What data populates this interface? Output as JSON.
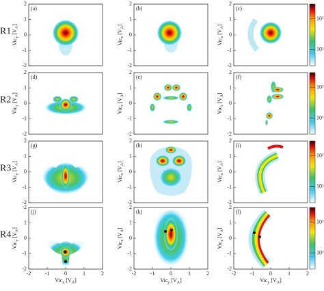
{
  "row_labels": [
    "R1",
    "R2",
    "R3",
    "R4"
  ],
  "chart_data": [
    {
      "type": "heatmap",
      "label": "(a)",
      "xlim": [
        -2,
        2
      ],
      "ylim": [
        -2,
        2
      ],
      "yticks": [
        -2,
        -1,
        0,
        1,
        2
      ],
      "ylabel": {
        "parts": [
          "Vic",
          "y",
          " [V",
          "A",
          "]"
        ]
      }
    },
    {
      "type": "heatmap",
      "label": "(b)",
      "xlim": [
        -2,
        2
      ],
      "ylim": [
        -2,
        2
      ],
      "yticks": [
        -2,
        -1,
        0,
        1,
        2
      ],
      "ylabel": {
        "parts": [
          "Vic",
          "z",
          " [V",
          "A",
          "]"
        ]
      }
    },
    {
      "type": "heatmap",
      "label": "(c)",
      "xlim": [
        -2,
        2
      ],
      "ylim": [
        -2,
        2
      ],
      "yticks": [
        -2,
        -1,
        0,
        1,
        2
      ],
      "ylabel": {
        "parts": [
          "Vic",
          "z",
          " [V",
          "A",
          "]"
        ]
      },
      "colorbar": {
        "clim": [
          3,
          300
        ],
        "ticks": [
          {
            "value": 10,
            "label": "10¹"
          },
          {
            "value": 100,
            "label": "10²"
          }
        ]
      }
    },
    {
      "type": "heatmap",
      "label": "(d)",
      "xlim": [
        -2,
        2
      ],
      "ylim": [
        -2,
        2
      ],
      "yticks": [
        -2,
        -1,
        0,
        1,
        2
      ],
      "ylabel": {
        "parts": [
          "Vic",
          "y",
          " [V",
          "A",
          "]"
        ]
      }
    },
    {
      "type": "heatmap",
      "label": "(e)",
      "xlim": [
        -2,
        2
      ],
      "ylim": [
        -2,
        2
      ],
      "yticks": [
        -2,
        -1,
        0,
        1,
        2
      ],
      "ylabel": {
        "parts": [
          "Vic",
          "z",
          " [V",
          "A",
          "]"
        ]
      }
    },
    {
      "type": "heatmap",
      "label": "(f)",
      "xlim": [
        -2,
        2
      ],
      "ylim": [
        -2,
        2
      ],
      "yticks": [
        -2,
        -1,
        0,
        1,
        2
      ],
      "ylabel": {
        "parts": [
          "Vic",
          "z",
          " [V",
          "A",
          "]"
        ]
      },
      "colorbar": {
        "clim": [
          3,
          300
        ],
        "ticks": [
          {
            "value": 10,
            "label": "10¹"
          },
          {
            "value": 100,
            "label": "10²"
          }
        ]
      }
    },
    {
      "type": "heatmap",
      "label": "(g)",
      "xlim": [
        -2,
        2
      ],
      "ylim": [
        -2,
        2
      ],
      "yticks": [
        -2,
        -1,
        0,
        1,
        2
      ],
      "ylabel": {
        "parts": [
          "Vic",
          "y",
          " [V",
          "A",
          "]"
        ]
      }
    },
    {
      "type": "heatmap",
      "label": "(h)",
      "xlim": [
        -2,
        2
      ],
      "ylim": [
        -2,
        2
      ],
      "yticks": [
        -2,
        -1,
        0,
        1,
        2
      ],
      "ylabel": {
        "parts": [
          "Vic",
          "z",
          " [V",
          "A",
          "]"
        ]
      }
    },
    {
      "type": "heatmap",
      "label": "(i)",
      "xlim": [
        -2,
        2
      ],
      "ylim": [
        -2,
        2
      ],
      "yticks": [
        -2,
        -1,
        0,
        1,
        2
      ],
      "ylabel": {
        "parts": [
          "Vic",
          "z",
          " [V",
          "A",
          "]"
        ]
      },
      "colorbar": {
        "clim": [
          3,
          300
        ],
        "ticks": [
          {
            "value": 10,
            "label": "10¹"
          },
          {
            "value": 100,
            "label": "10²"
          }
        ]
      }
    },
    {
      "type": "heatmap",
      "label": "(j)",
      "xlim": [
        -2,
        2
      ],
      "ylim": [
        -2,
        2
      ],
      "xticks": [
        -2,
        -1,
        0,
        1,
        2
      ],
      "yticks": [
        -2,
        -1,
        0,
        1,
        2
      ],
      "ylabel": {
        "parts": [
          "Vic",
          "y",
          " [V",
          "A",
          "]"
        ]
      },
      "xlabel": {
        "parts": [
          "Vic",
          "x",
          " [V",
          "A",
          "]"
        ]
      }
    },
    {
      "type": "heatmap",
      "label": "(k)",
      "xlim": [
        -2,
        2
      ],
      "ylim": [
        -2,
        2
      ],
      "xticks": [
        -2,
        -1,
        0,
        1,
        2
      ],
      "yticks": [
        -2,
        -1,
        0,
        1,
        2
      ],
      "ylabel": {
        "parts": [
          "Vic",
          "z",
          " [V",
          "A",
          "]"
        ]
      },
      "xlabel": {
        "parts": [
          "Vic",
          "y",
          " [V",
          "A",
          "]"
        ]
      }
    },
    {
      "type": "heatmap",
      "label": "(l)",
      "xlim": [
        -2,
        2
      ],
      "ylim": [
        -2,
        2
      ],
      "xticks": [
        -2,
        -1,
        0,
        1,
        2
      ],
      "yticks": [
        -2,
        -1,
        0,
        1,
        2
      ],
      "ylabel": {
        "parts": [
          "Vic",
          "z",
          " [V",
          "A",
          "]"
        ]
      },
      "xlabel": {
        "parts": [
          "Vic",
          "y",
          " [V",
          "A",
          "]"
        ]
      },
      "colorbar": {
        "clim": [
          3,
          300
        ],
        "ticks": [
          {
            "value": 10,
            "label": "10¹"
          },
          {
            "value": 100,
            "label": "10²"
          }
        ]
      }
    }
  ]
}
